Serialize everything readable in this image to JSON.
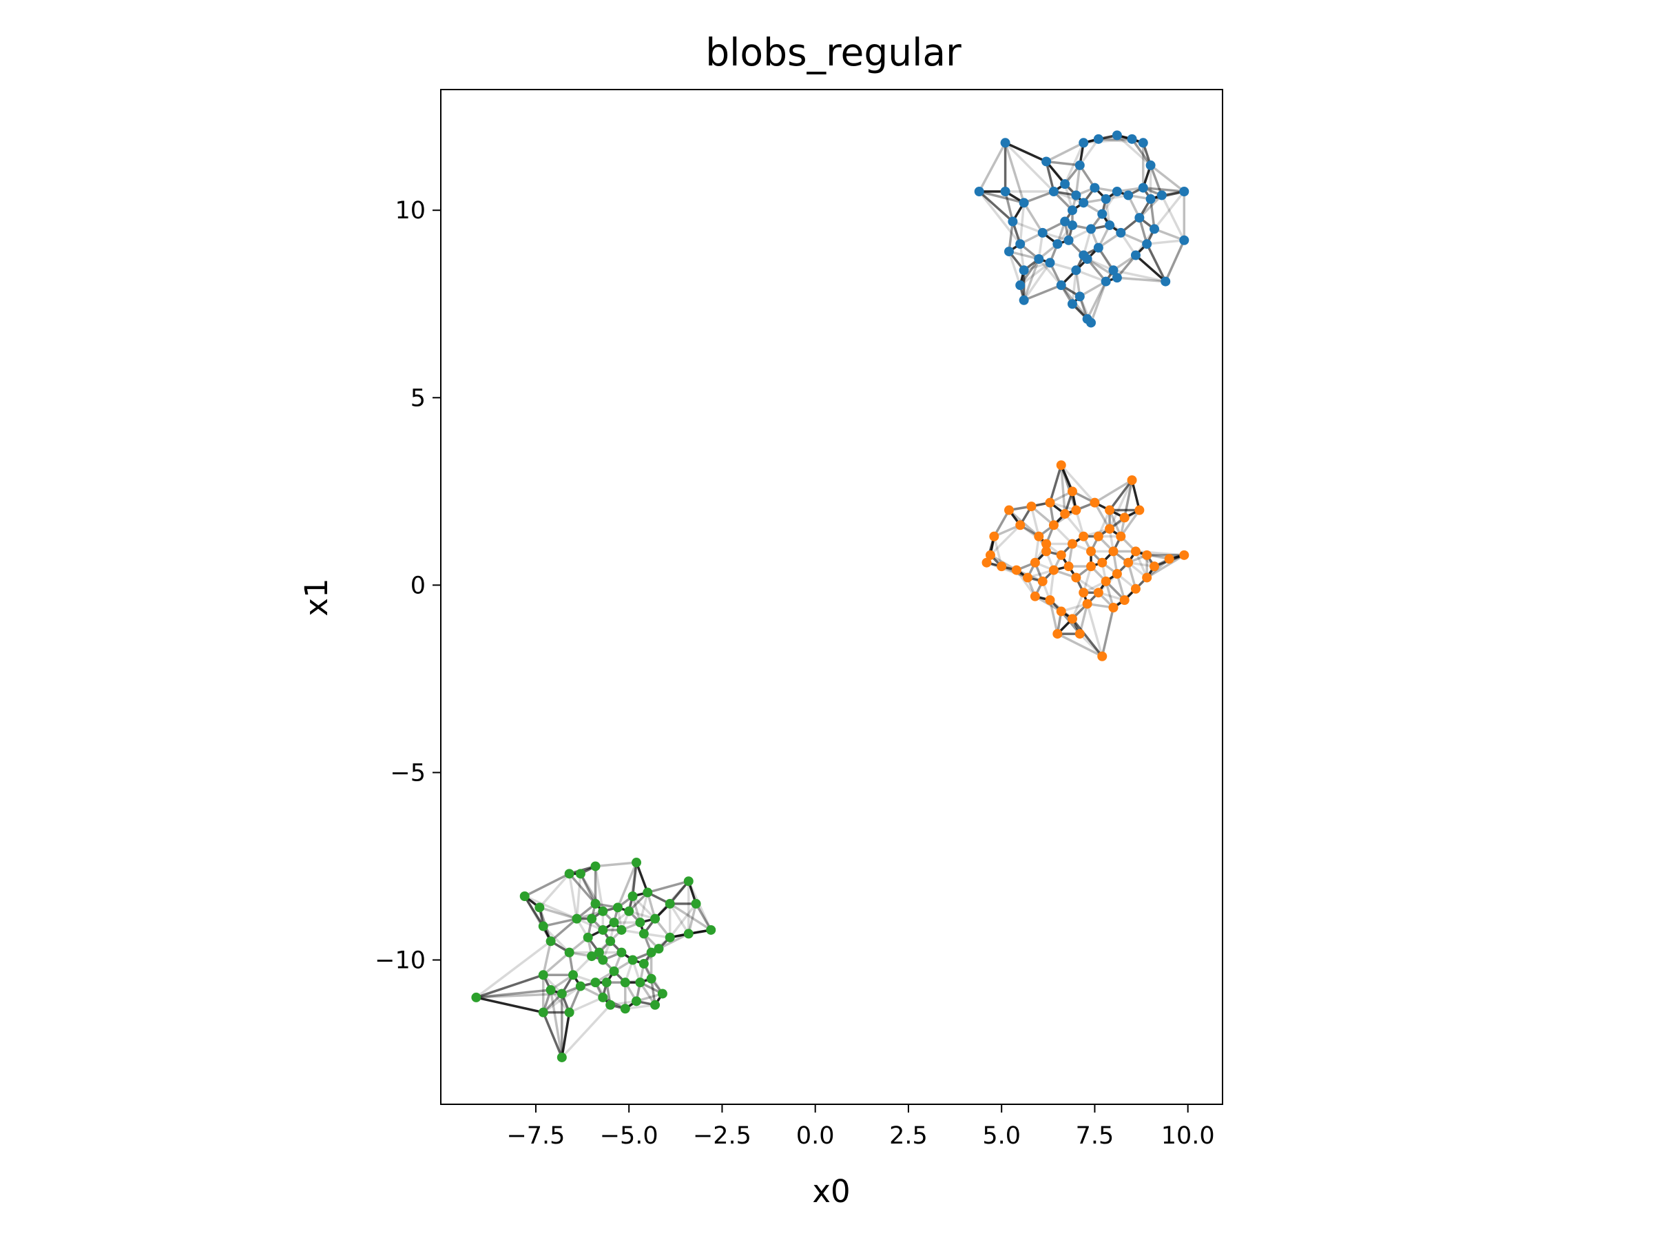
{
  "chart_data": {
    "type": "scatter",
    "title": "blobs_regular",
    "xlabel": "x0",
    "ylabel": "x1",
    "xlim": [
      -10.05,
      10.93
    ],
    "ylim": [
      -13.85,
      13.22
    ],
    "xticks": [
      -7.5,
      -5.0,
      -2.5,
      0.0,
      2.5,
      5.0,
      7.5,
      10.0
    ],
    "xtick_labels": [
      "−7.5",
      "−5.0",
      "−2.5",
      "0.0",
      "2.5",
      "5.0",
      "7.5",
      "10.0"
    ],
    "yticks": [
      -10,
      -5,
      0,
      5,
      10
    ],
    "ytick_labels": [
      "−10",
      "−5",
      "0",
      "5",
      "10"
    ],
    "grid": false,
    "edges": "k-nearest-neighbor graph connecting points within each cluster (gray, varying opacity)",
    "series": [
      {
        "color": "#1f77b4",
        "points": [
          [
            4.4,
            10.5
          ],
          [
            5.1,
            11.8
          ],
          [
            5.1,
            10.5
          ],
          [
            5.6,
            10.2
          ],
          [
            6.2,
            11.3
          ],
          [
            6.4,
            10.5
          ],
          [
            5.3,
            9.7
          ],
          [
            5.5,
            9.1
          ],
          [
            5.2,
            8.9
          ],
          [
            5.6,
            8.4
          ],
          [
            5.5,
            8.0
          ],
          [
            5.6,
            7.6
          ],
          [
            6.0,
            8.7
          ],
          [
            6.1,
            9.4
          ],
          [
            6.5,
            9.1
          ],
          [
            6.3,
            8.6
          ],
          [
            6.6,
            8.0
          ],
          [
            6.9,
            7.5
          ],
          [
            7.1,
            7.7
          ],
          [
            7.3,
            7.1
          ],
          [
            7.4,
            7.0
          ],
          [
            7.0,
            8.4
          ],
          [
            7.2,
            8.8
          ],
          [
            6.8,
            9.2
          ],
          [
            6.7,
            9.7
          ],
          [
            6.9,
            10.0
          ],
          [
            7.0,
            10.4
          ],
          [
            6.7,
            10.7
          ],
          [
            7.1,
            11.2
          ],
          [
            7.2,
            11.8
          ],
          [
            7.6,
            11.9
          ],
          [
            8.1,
            12.0
          ],
          [
            8.5,
            11.9
          ],
          [
            8.8,
            11.8
          ],
          [
            9.0,
            11.2
          ],
          [
            7.5,
            10.6
          ],
          [
            7.8,
            10.3
          ],
          [
            8.1,
            10.5
          ],
          [
            7.7,
            9.9
          ],
          [
            7.4,
            9.5
          ],
          [
            7.9,
            9.6
          ],
          [
            8.2,
            9.4
          ],
          [
            7.6,
            9.0
          ],
          [
            7.3,
            8.7
          ],
          [
            8.0,
            8.4
          ],
          [
            7.8,
            8.1
          ],
          [
            8.1,
            8.2
          ],
          [
            8.6,
            8.8
          ],
          [
            8.9,
            9.1
          ],
          [
            9.1,
            9.5
          ],
          [
            8.7,
            9.8
          ],
          [
            9.0,
            10.3
          ],
          [
            8.8,
            10.6
          ],
          [
            9.3,
            10.4
          ],
          [
            9.9,
            10.5
          ],
          [
            9.9,
            9.2
          ],
          [
            9.4,
            8.1
          ],
          [
            8.4,
            10.4
          ],
          [
            6.9,
            9.6
          ],
          [
            7.2,
            10.2
          ]
        ]
      },
      {
        "color": "#ff7f0e",
        "points": [
          [
            6.6,
            3.2
          ],
          [
            6.9,
            2.5
          ],
          [
            6.3,
            2.2
          ],
          [
            5.8,
            2.1
          ],
          [
            5.2,
            2.0
          ],
          [
            5.5,
            1.6
          ],
          [
            4.8,
            1.3
          ],
          [
            4.7,
            0.8
          ],
          [
            4.6,
            0.6
          ],
          [
            5.0,
            0.5
          ],
          [
            5.4,
            0.4
          ],
          [
            5.7,
            0.2
          ],
          [
            5.9,
            0.6
          ],
          [
            6.2,
            0.9
          ],
          [
            6.0,
            1.3
          ],
          [
            6.4,
            1.6
          ],
          [
            6.7,
            1.9
          ],
          [
            7.0,
            2.0
          ],
          [
            7.5,
            2.2
          ],
          [
            7.9,
            2.0
          ],
          [
            8.3,
            1.8
          ],
          [
            8.5,
            2.8
          ],
          [
            8.7,
            2.0
          ],
          [
            8.2,
            1.3
          ],
          [
            8.0,
            0.9
          ],
          [
            7.7,
            0.6
          ],
          [
            7.4,
            0.9
          ],
          [
            7.2,
            1.3
          ],
          [
            6.9,
            1.1
          ],
          [
            6.6,
            0.8
          ],
          [
            6.4,
            0.4
          ],
          [
            6.1,
            0.1
          ],
          [
            5.9,
            -0.3
          ],
          [
            6.3,
            -0.4
          ],
          [
            6.5,
            -1.3
          ],
          [
            6.9,
            -0.9
          ],
          [
            7.1,
            -1.3
          ],
          [
            7.7,
            -1.9
          ],
          [
            7.3,
            -0.5
          ],
          [
            7.6,
            -0.2
          ],
          [
            7.8,
            0.1
          ],
          [
            8.1,
            0.3
          ],
          [
            8.4,
            0.6
          ],
          [
            8.6,
            0.9
          ],
          [
            8.9,
            0.8
          ],
          [
            9.1,
            0.5
          ],
          [
            8.9,
            0.2
          ],
          [
            8.6,
            -0.1
          ],
          [
            8.3,
            -0.4
          ],
          [
            9.5,
            0.7
          ],
          [
            9.9,
            0.8
          ],
          [
            7.0,
            0.2
          ],
          [
            6.8,
            0.5
          ],
          [
            7.4,
            0.5
          ],
          [
            7.9,
            1.5
          ],
          [
            6.6,
            -0.7
          ],
          [
            7.2,
            -0.2
          ],
          [
            8.0,
            -0.6
          ],
          [
            6.2,
            1.1
          ],
          [
            7.6,
            1.3
          ]
        ]
      },
      {
        "color": "#2ca02c",
        "points": [
          [
            -9.1,
            -11.0
          ],
          [
            -7.8,
            -8.3
          ],
          [
            -7.4,
            -8.6
          ],
          [
            -7.3,
            -9.1
          ],
          [
            -7.1,
            -9.5
          ],
          [
            -6.6,
            -7.7
          ],
          [
            -6.3,
            -7.7
          ],
          [
            -5.9,
            -7.5
          ],
          [
            -4.8,
            -7.4
          ],
          [
            -4.5,
            -8.2
          ],
          [
            -3.4,
            -7.9
          ],
          [
            -3.2,
            -8.5
          ],
          [
            -2.8,
            -9.2
          ],
          [
            -3.4,
            -9.3
          ],
          [
            -3.9,
            -8.5
          ],
          [
            -4.3,
            -8.9
          ],
          [
            -4.6,
            -9.3
          ],
          [
            -4.2,
            -9.7
          ],
          [
            -4.6,
            -10.1
          ],
          [
            -4.4,
            -10.5
          ],
          [
            -4.1,
            -10.9
          ],
          [
            -4.3,
            -11.2
          ],
          [
            -4.8,
            -11.1
          ],
          [
            -5.1,
            -11.3
          ],
          [
            -5.5,
            -11.2
          ],
          [
            -5.7,
            -11.0
          ],
          [
            -5.9,
            -10.6
          ],
          [
            -6.3,
            -10.7
          ],
          [
            -6.5,
            -10.4
          ],
          [
            -6.8,
            -10.9
          ],
          [
            -7.1,
            -10.8
          ],
          [
            -7.3,
            -10.4
          ],
          [
            -7.3,
            -11.4
          ],
          [
            -6.6,
            -11.4
          ],
          [
            -6.8,
            -12.6
          ],
          [
            -6.1,
            -9.4
          ],
          [
            -5.7,
            -9.2
          ],
          [
            -5.4,
            -9.0
          ],
          [
            -5.0,
            -8.7
          ],
          [
            -4.9,
            -8.3
          ],
          [
            -5.3,
            -8.6
          ],
          [
            -5.7,
            -8.7
          ],
          [
            -6.0,
            -8.9
          ],
          [
            -5.5,
            -9.5
          ],
          [
            -5.2,
            -9.8
          ],
          [
            -4.9,
            -10.0
          ],
          [
            -5.4,
            -10.3
          ],
          [
            -5.7,
            -10.0
          ],
          [
            -5.1,
            -10.6
          ],
          [
            -4.7,
            -10.6
          ],
          [
            -5.8,
            -9.8
          ],
          [
            -5.2,
            -9.2
          ],
          [
            -4.7,
            -9.0
          ],
          [
            -6.4,
            -8.9
          ],
          [
            -6.0,
            -9.9
          ],
          [
            -5.6,
            -10.6
          ],
          [
            -4.4,
            -9.8
          ],
          [
            -3.9,
            -9.4
          ],
          [
            -5.9,
            -8.5
          ],
          [
            -6.6,
            -9.8
          ]
        ]
      }
    ]
  }
}
